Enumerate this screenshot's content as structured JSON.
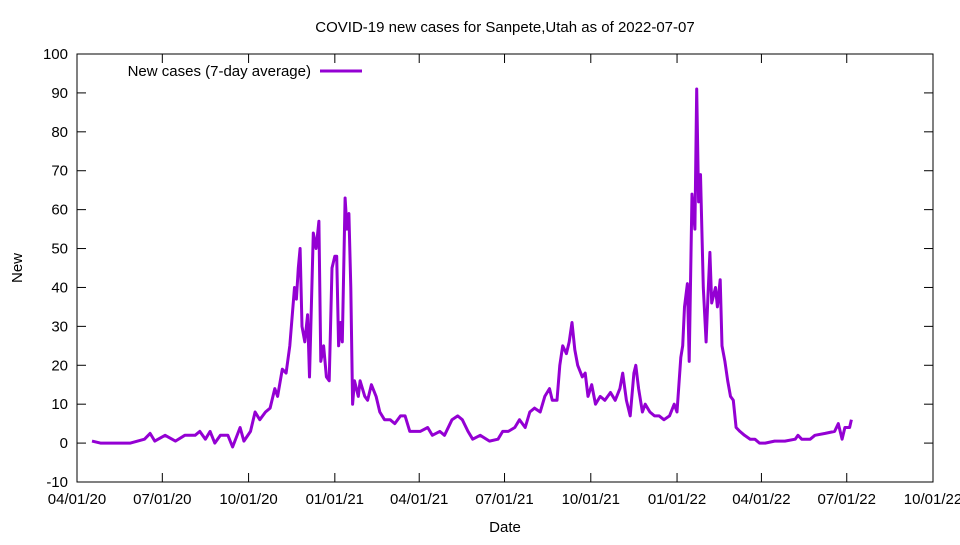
{
  "chart_data": {
    "type": "line",
    "title": "COVID-19 new cases for Sanpete,Utah as of 2022-07-07",
    "xlabel": "Date",
    "ylabel": "New",
    "x_units": "days since 04/01/20",
    "xlim": [
      0,
      913
    ],
    "ylim": [
      -10,
      100
    ],
    "yticks": [
      -10,
      0,
      10,
      20,
      30,
      40,
      50,
      60,
      70,
      80,
      90,
      100
    ],
    "xticks": [
      {
        "value": 0,
        "label": "04/01/20"
      },
      {
        "value": 91,
        "label": "07/01/20"
      },
      {
        "value": 183,
        "label": "10/01/20"
      },
      {
        "value": 275,
        "label": "01/01/21"
      },
      {
        "value": 365,
        "label": "04/01/21"
      },
      {
        "value": 456,
        "label": "07/01/21"
      },
      {
        "value": 548,
        "label": "10/01/21"
      },
      {
        "value": 640,
        "label": "01/01/22"
      },
      {
        "value": 730,
        "label": "04/01/22"
      },
      {
        "value": 821,
        "label": "07/01/22"
      },
      {
        "value": 913,
        "label": "10/01/22"
      }
    ],
    "grid": false,
    "legend_position": "top-left",
    "series": [
      {
        "name": "New cases (7-day average)",
        "color": "#9400d3",
        "x": [
          16,
          25,
          57,
          72,
          78,
          83,
          94,
          105,
          115,
          126,
          131,
          137,
          142,
          147,
          153,
          161,
          166,
          174,
          178,
          185,
          190,
          195,
          201,
          206,
          211,
          214,
          219,
          223,
          227,
          232,
          234,
          236,
          238,
          240,
          243,
          246,
          248,
          252,
          255,
          258,
          260,
          263,
          266,
          269,
          272,
          275,
          277,
          279,
          281,
          283,
          286,
          288,
          290,
          292,
          294,
          296,
          300,
          302,
          307,
          310,
          314,
          319,
          323,
          328,
          334,
          339,
          345,
          350,
          355,
          366,
          374,
          379,
          387,
          392,
          400,
          406,
          411,
          417,
          422,
          430,
          440,
          449,
          454,
          460,
          467,
          472,
          478,
          483,
          488,
          494,
          499,
          504,
          507,
          512,
          515,
          518,
          522,
          525,
          528,
          531,
          534,
          539,
          542,
          545,
          549,
          553,
          558,
          563,
          569,
          574,
          579,
          582,
          586,
          590,
          594,
          596,
          599,
          603,
          606,
          611,
          616,
          621,
          626,
          632,
          637,
          640,
          644,
          646,
          648,
          651,
          653,
          656,
          659,
          661,
          663,
          665,
          668,
          671,
          673,
          675,
          677,
          681,
          683,
          686,
          688,
          691,
          694,
          697,
          700,
          703,
          707,
          712,
          718,
          723,
          728,
          734,
          744,
          755,
          766,
          769,
          773,
          782,
          787,
          798,
          808,
          812,
          816,
          819,
          824,
          826
        ],
        "y": [
          0.5,
          0,
          0,
          1,
          2.5,
          0.5,
          2,
          0.5,
          2,
          2,
          3,
          1,
          3,
          0,
          2,
          2,
          -1,
          4,
          0.5,
          3,
          8,
          6,
          8,
          9,
          14,
          12,
          19,
          18,
          25,
          40,
          37,
          45,
          50,
          30,
          26,
          33,
          17,
          54,
          50,
          57,
          21,
          25,
          17,
          16,
          45,
          48,
          48,
          25,
          31,
          26,
          63,
          55,
          59,
          40,
          10,
          16,
          12,
          16,
          12,
          11,
          15,
          12,
          8,
          6,
          6,
          5,
          7,
          7,
          3,
          3,
          4,
          2,
          3,
          2,
          6,
          7,
          6,
          3,
          1,
          2,
          0.5,
          1,
          3,
          3,
          4,
          6,
          4,
          8,
          9,
          8,
          12,
          14,
          11,
          11,
          20,
          25,
          23,
          26,
          31,
          24,
          20,
          17,
          18,
          12,
          15,
          10,
          12,
          11,
          13,
          11,
          14,
          18,
          11,
          7,
          18,
          20,
          14,
          8,
          10,
          8,
          7,
          7,
          6,
          7,
          10,
          8,
          22,
          25,
          35,
          41,
          21,
          64,
          55,
          91,
          62,
          69,
          40,
          26,
          38,
          49,
          36,
          40,
          35,
          42,
          25,
          21,
          16,
          12,
          11,
          4,
          3,
          2,
          1,
          1,
          0,
          0,
          0.5,
          0.5,
          1,
          2,
          1,
          1,
          2,
          2.5,
          3,
          5,
          1,
          4,
          4,
          6
        ]
      }
    ]
  }
}
